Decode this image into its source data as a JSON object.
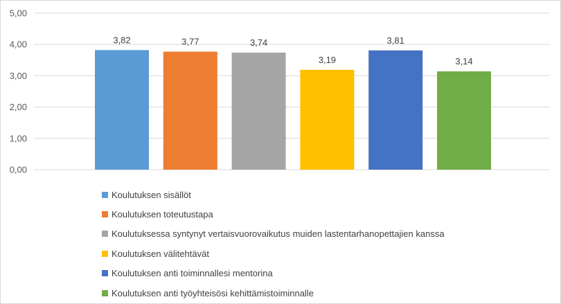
{
  "chart_data": {
    "type": "bar",
    "categories": [
      "Koulutuksen sisällöt",
      "Koulutuksen toteutustapa",
      "Koulutuksessa syntynyt vertaisvuorovaikutus muiden lastentarhanopettajien kanssa",
      "Koulutuksen välitehtävät",
      "Koulutuksen anti toiminnallesi mentorina",
      "Koulutuksen anti työyhteisösi kehittämistoiminnalle"
    ],
    "values": [
      3.82,
      3.77,
      3.74,
      3.19,
      3.81,
      3.14
    ],
    "value_labels": [
      "3,82",
      "3,77",
      "3,74",
      "3,19",
      "3,81",
      "3,14"
    ],
    "colors": [
      "#5b9bd5",
      "#ed7d31",
      "#a5a5a5",
      "#ffc000",
      "#4472c4",
      "#70ad47"
    ],
    "ylim": [
      0,
      5
    ],
    "yticks": [
      "0,00",
      "1,00",
      "2,00",
      "3,00",
      "4,00",
      "5,00"
    ],
    "grid": true,
    "legend_position": "bottom"
  }
}
